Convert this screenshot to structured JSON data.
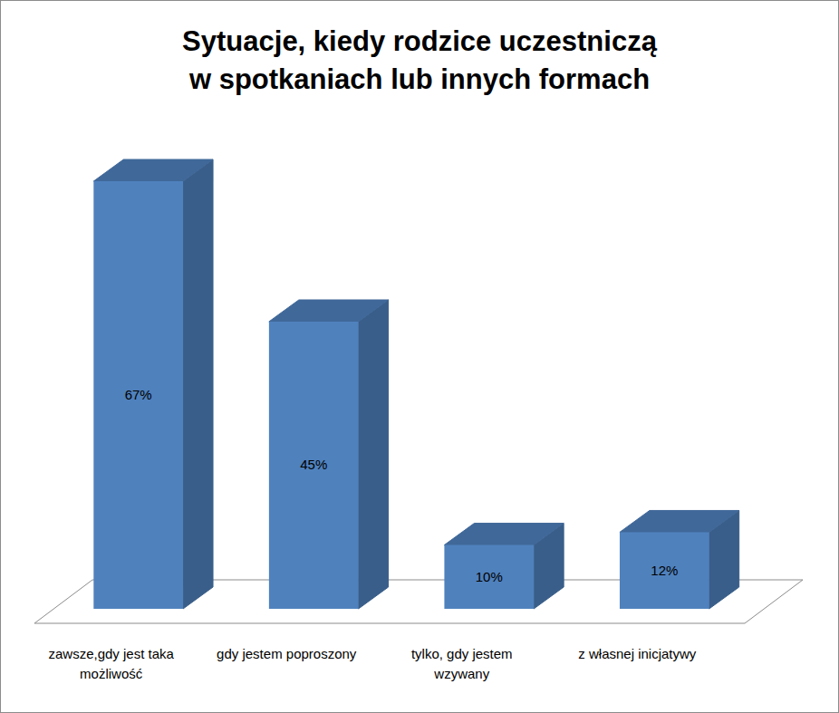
{
  "chart_data": {
    "type": "bar",
    "title": "Sytuacje,  kiedy rodzice uczestniczą\nw spotkaniach lub innych formach",
    "categories": [
      "zawsze,gdy jest taka możliwość",
      "gdy jestem poproszony",
      "tylko, gdy jestem wzywany",
      "z własnej inicjatywy"
    ],
    "values": [
      67,
      45,
      10,
      12
    ],
    "value_labels": [
      "67%",
      "45%",
      "10%",
      "12%"
    ],
    "color": "#4f81bd",
    "data_labels": true,
    "tick_labels": "x"
  }
}
